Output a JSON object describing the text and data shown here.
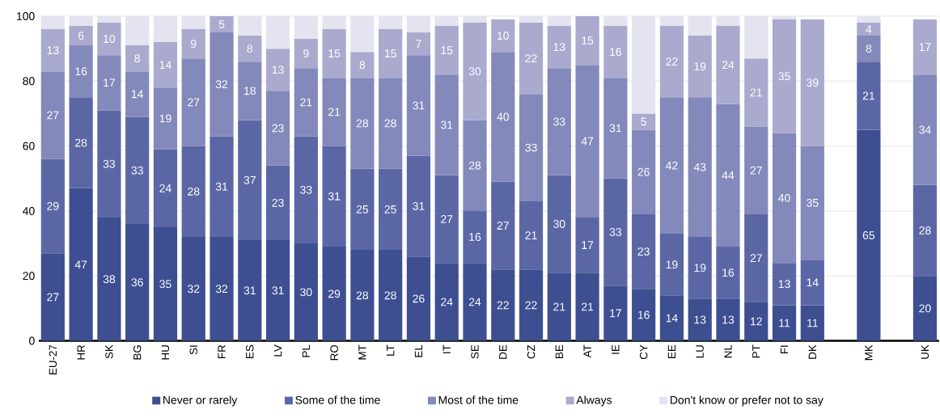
{
  "chart_data": {
    "type": "bar",
    "stacked": true,
    "grid": "y",
    "legend": "bottom",
    "ylim": [
      0,
      100
    ],
    "yticks": [
      0,
      20,
      40,
      60,
      80,
      100
    ],
    "categories": [
      "EU-27",
      "HR",
      "SK",
      "BG",
      "HU",
      "SI",
      "FR",
      "ES",
      "LV",
      "PL",
      "RO",
      "MT",
      "LT",
      "EL",
      "IT",
      "SE",
      "DE",
      "CZ",
      "BE",
      "AT",
      "IE",
      "CY",
      "EE",
      "LU",
      "NL",
      "PT",
      "FI",
      "DK",
      null,
      "MK",
      null,
      "UK"
    ],
    "series": [
      {
        "name": "Never or rarely",
        "color": "#3d4f91",
        "values": [
          27,
          47,
          38,
          36,
          35,
          32,
          32,
          31,
          31,
          30,
          29,
          28,
          28,
          26,
          24,
          24,
          22,
          22,
          21,
          21,
          17,
          16,
          14,
          13,
          13,
          12,
          11,
          11,
          null,
          65,
          null,
          20
        ],
        "value_labels": [
          "27",
          "47",
          "38",
          "36",
          "35",
          "32",
          "32",
          "31",
          "31",
          "30",
          "29",
          "28",
          "28",
          "26",
          "24",
          "24",
          "22",
          "22",
          "21",
          "21",
          "17",
          "16",
          "14",
          "13",
          "13",
          "12",
          "11",
          "11",
          null,
          "65",
          null,
          "20"
        ]
      },
      {
        "name": "Some of the time",
        "color": "#5b67a5",
        "values": [
          29,
          28,
          33,
          33,
          24,
          28,
          31,
          37,
          23,
          33,
          31,
          25,
          25,
          31,
          27,
          16,
          27,
          21,
          30,
          17,
          33,
          23,
          19,
          19,
          16,
          27,
          13,
          14,
          null,
          21,
          null,
          28
        ],
        "value_labels": [
          "29",
          "28",
          "33",
          "33",
          "24",
          "28",
          "31",
          "37",
          "23",
          "33",
          "31",
          "25",
          "25",
          "31",
          "27",
          "16",
          "27",
          "21",
          "30",
          "17",
          "33",
          "23",
          "19",
          "19",
          "16",
          "27",
          "13",
          "14",
          null,
          "21",
          null,
          "28"
        ]
      },
      {
        "name": "Most of the time",
        "color": "#8489bb",
        "values": [
          27,
          16,
          17,
          14,
          19,
          27,
          32,
          18,
          23,
          21,
          21,
          28,
          28,
          31,
          31,
          28,
          40,
          33,
          33,
          47,
          31,
          26,
          42,
          43,
          44,
          27,
          40,
          35,
          null,
          8,
          null,
          34
        ],
        "value_labels": [
          "27",
          "16",
          "17",
          "14",
          "19",
          "27",
          "32",
          "18",
          "23",
          "21",
          "21",
          "28",
          "28",
          "31",
          "31",
          "28",
          "40",
          "33",
          "33",
          "47",
          "31",
          "26",
          "42",
          "43",
          "44",
          "27",
          "40",
          "35",
          null,
          "8",
          null,
          "34"
        ]
      },
      {
        "name": "Always",
        "color": "#aaaacf",
        "values": [
          13,
          6,
          10,
          8,
          14,
          9,
          5,
          8,
          13,
          9,
          15,
          8,
          15,
          7,
          15,
          30,
          10,
          22,
          13,
          15,
          16,
          5,
          22,
          19,
          24,
          21,
          35,
          39,
          null,
          4,
          null,
          17
        ],
        "value_labels": [
          "13",
          "6",
          "10",
          "8",
          "14",
          "9",
          "5",
          "8",
          "13",
          "9",
          "15",
          "8",
          "15",
          "7",
          "15",
          "30",
          "10",
          "22",
          "13",
          "15",
          "16",
          "5",
          "22",
          "19",
          "24",
          "21",
          "35",
          "39",
          null,
          "4",
          null,
          "17"
        ]
      },
      {
        "name": "Don't know or prefer not to say",
        "color": "#e4e4f0",
        "values": [
          4,
          3,
          2,
          9,
          8,
          4,
          0,
          6,
          10,
          7,
          4,
          11,
          4,
          5,
          3,
          2,
          0,
          2,
          3,
          0,
          3,
          30,
          3,
          6,
          3,
          13,
          1,
          0,
          null,
          2,
          null,
          0
        ]
      }
    ]
  }
}
